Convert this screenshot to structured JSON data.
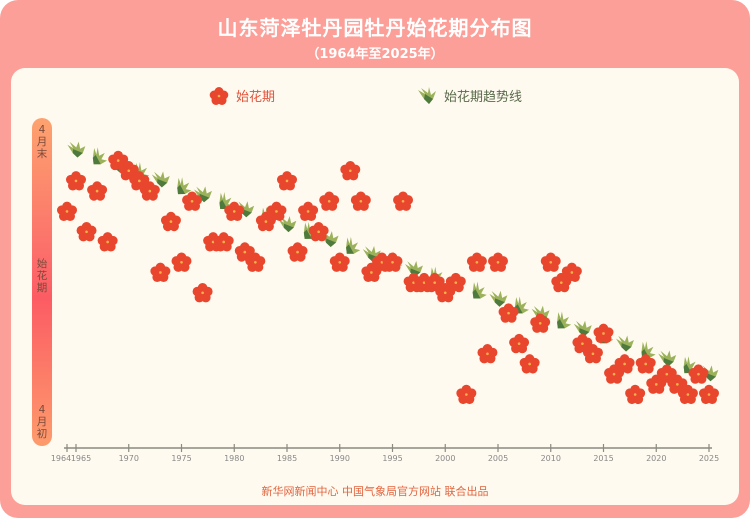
{
  "header": {
    "title": "山东菏泽牡丹园牡丹始花期分布图",
    "subtitle": "（1964年至2025年）"
  },
  "legend": {
    "flower_label": "始花期",
    "trend_label": "始花期趋势线"
  },
  "y_axis": {
    "top_label": "4\n月\n末",
    "middle_label": "始\n花\n期",
    "bottom_label": "4\n月\n初"
  },
  "footer": "新华网新闻中心 中国气象局官方网站 联合出品",
  "colors": {
    "frame": "#fc9f98",
    "panel": "#fffaf0",
    "flower": "#e8472e",
    "leaf_light": "#9bb25a",
    "leaf_dark": "#4e7a3e",
    "axis": "#8a8a80"
  },
  "chart_data": {
    "type": "scatter",
    "title": "山东菏泽牡丹园牡丹始花期分布图",
    "subtitle": "（1964年至2025年）",
    "xlabel": "",
    "ylabel": "始花期 (4月初 → 4月末)",
    "x_ticks": [
      1964,
      1965,
      1970,
      1975,
      1980,
      1985,
      1990,
      1995,
      2000,
      2005,
      2010,
      2015,
      2020,
      2025
    ],
    "y_range_day_of_april": [
      1,
      30
    ],
    "legend": [
      "始花期",
      "始花期趋势线"
    ],
    "legend_position": "top",
    "grid": false,
    "series": [
      {
        "name": "始花期",
        "marker": "peony-flower",
        "points": [
          [
            1964,
            22
          ],
          [
            1965,
            25
          ],
          [
            1966,
            20
          ],
          [
            1967,
            24
          ],
          [
            1968,
            19
          ],
          [
            1969,
            27
          ],
          [
            1970,
            26
          ],
          [
            1971,
            25
          ],
          [
            1972,
            24
          ],
          [
            1973,
            16
          ],
          [
            1974,
            21
          ],
          [
            1975,
            17
          ],
          [
            1976,
            23
          ],
          [
            1977,
            14
          ],
          [
            1978,
            19
          ],
          [
            1979,
            19
          ],
          [
            1980,
            22
          ],
          [
            1981,
            18
          ],
          [
            1982,
            17
          ],
          [
            1983,
            21
          ],
          [
            1984,
            22
          ],
          [
            1985,
            25
          ],
          [
            1986,
            18
          ],
          [
            1987,
            22
          ],
          [
            1988,
            20
          ],
          [
            1989,
            23
          ],
          [
            1990,
            17
          ],
          [
            1991,
            26
          ],
          [
            1992,
            23
          ],
          [
            1993,
            16
          ],
          [
            1994,
            17
          ],
          [
            1995,
            17
          ],
          [
            1996,
            23
          ],
          [
            1997,
            15
          ],
          [
            1998,
            15
          ],
          [
            1999,
            15
          ],
          [
            2000,
            14
          ],
          [
            2001,
            15
          ],
          [
            2002,
            4
          ],
          [
            2003,
            17
          ],
          [
            2004,
            8
          ],
          [
            2005,
            17
          ],
          [
            2006,
            12
          ],
          [
            2007,
            9
          ],
          [
            2008,
            7
          ],
          [
            2009,
            11
          ],
          [
            2010,
            17
          ],
          [
            2011,
            15
          ],
          [
            2012,
            16
          ],
          [
            2013,
            9
          ],
          [
            2014,
            8
          ],
          [
            2015,
            10
          ],
          [
            2016,
            6
          ],
          [
            2017,
            7
          ],
          [
            2018,
            4
          ],
          [
            2019,
            7
          ],
          [
            2020,
            5
          ],
          [
            2021,
            6
          ],
          [
            2022,
            5
          ],
          [
            2023,
            4
          ],
          [
            2024,
            6
          ],
          [
            2025,
            4
          ]
        ]
      },
      {
        "name": "始花期趋势线",
        "marker": "leaf",
        "type": "line",
        "points": [
          [
            1965,
            28
          ],
          [
            2025,
            6
          ]
        ]
      }
    ]
  }
}
